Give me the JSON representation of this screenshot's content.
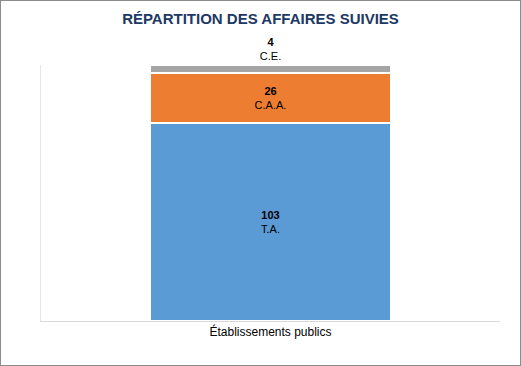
{
  "chart_data": {
    "type": "bar",
    "title": "RÉPARTITION DES AFFAIRES SUIVIES",
    "categories": [
      "Établissements publics"
    ],
    "series": [
      {
        "name": "T.A.",
        "color": "#5b9bd5",
        "values": [
          103
        ]
      },
      {
        "name": "C.A.A.",
        "color": "#ed7d31",
        "values": [
          26
        ]
      },
      {
        "name": "C.E.",
        "color": "#a5a5a5",
        "values": [
          4
        ]
      }
    ],
    "stacked": true,
    "data_labels": true,
    "tick_labels": "x",
    "grid": false,
    "ylim": [
      0,
      133
    ]
  }
}
